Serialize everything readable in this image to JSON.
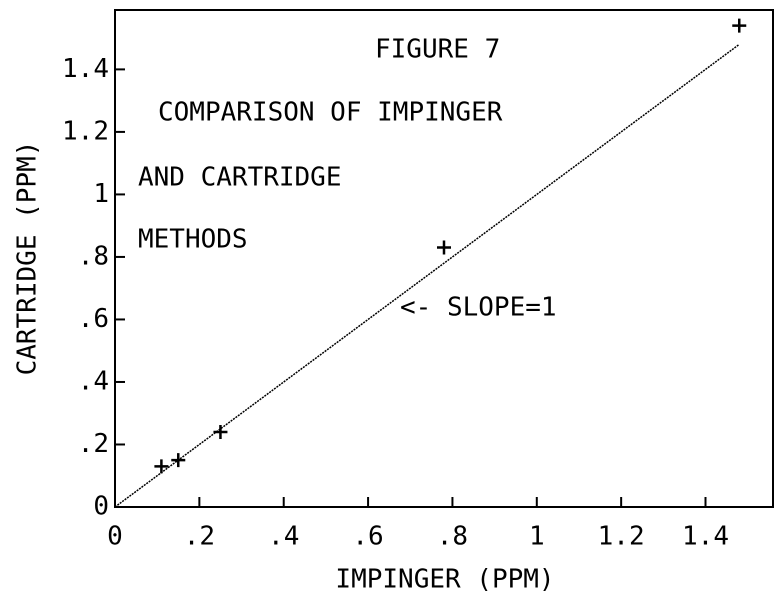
{
  "chart_data": {
    "type": "scatter",
    "x_label": "IMPINGER (PPM)",
    "y_label": "CARTRIDGE (PPM)",
    "annotations": [
      "FIGURE 7",
      "COMPARISON OF IMPINGER",
      "AND CARTRIDGE",
      "METHODS",
      "<- SLOPE=1"
    ],
    "series": [
      {
        "color": "#000000",
        "x": [
          0.11,
          0.15,
          0.25,
          0.78,
          1.48
        ],
        "values": [
          0.13,
          0.15,
          0.24,
          0.83,
          1.54
        ]
      }
    ],
    "reference_line": {
      "x": [
        0,
        1.48
      ],
      "values": [
        0,
        1.48
      ]
    },
    "xlim": [
      0,
      1.56
    ],
    "ylim": [
      0,
      1.59
    ],
    "xticks": [
      0,
      {
        "value": 0.2,
        "label": ".2"
      },
      {
        "value": 0.4,
        "label": ".4"
      },
      {
        "value": 0.6,
        "label": ".6"
      },
      {
        "value": 0.8,
        "label": ".8"
      },
      1,
      1.2,
      1.4
    ],
    "yticks": [
      0,
      {
        "value": 0.2,
        "label": ".2"
      },
      {
        "value": 0.4,
        "label": ".4"
      },
      {
        "value": 0.6,
        "label": ".6"
      },
      {
        "value": 0.8,
        "label": ".8"
      },
      1,
      1.2,
      1.4
    ]
  }
}
